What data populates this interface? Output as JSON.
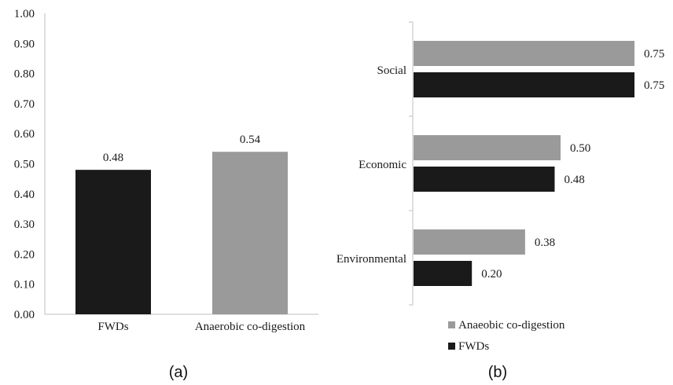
{
  "chart_data": [
    {
      "type": "bar",
      "orientation": "vertical",
      "categories": [
        "FWDs",
        "Anaerobic co-digestion"
      ],
      "values": [
        0.48,
        0.54
      ],
      "value_labels": [
        "0.48",
        "0.54"
      ],
      "bar_colors": [
        "#1a1a1a",
        "#9a9a9a"
      ],
      "ylim": [
        0,
        1.0
      ],
      "yticks": [
        "0.00",
        "0.10",
        "0.20",
        "0.30",
        "0.40",
        "0.50",
        "0.60",
        "0.70",
        "0.80",
        "0.90",
        "1.00"
      ],
      "grid": false,
      "panel_label": "(a)"
    },
    {
      "type": "bar",
      "orientation": "horizontal",
      "categories": [
        "Social",
        "Economic",
        "Environmental"
      ],
      "series": [
        {
          "name": "Anaeobic co-digestion",
          "color": "#9a9a9a",
          "values": [
            0.75,
            0.5,
            0.38
          ],
          "value_labels": [
            "0.75",
            "0.50",
            "0.38"
          ]
        },
        {
          "name": "FWDs",
          "color": "#1a1a1a",
          "values": [
            0.75,
            0.48,
            0.2
          ],
          "value_labels": [
            "0.75",
            "0.48",
            "0.20"
          ]
        }
      ],
      "xlim": [
        0,
        0.75
      ],
      "grid": false,
      "legend_position": "bottom",
      "panel_label": "(b)"
    }
  ]
}
